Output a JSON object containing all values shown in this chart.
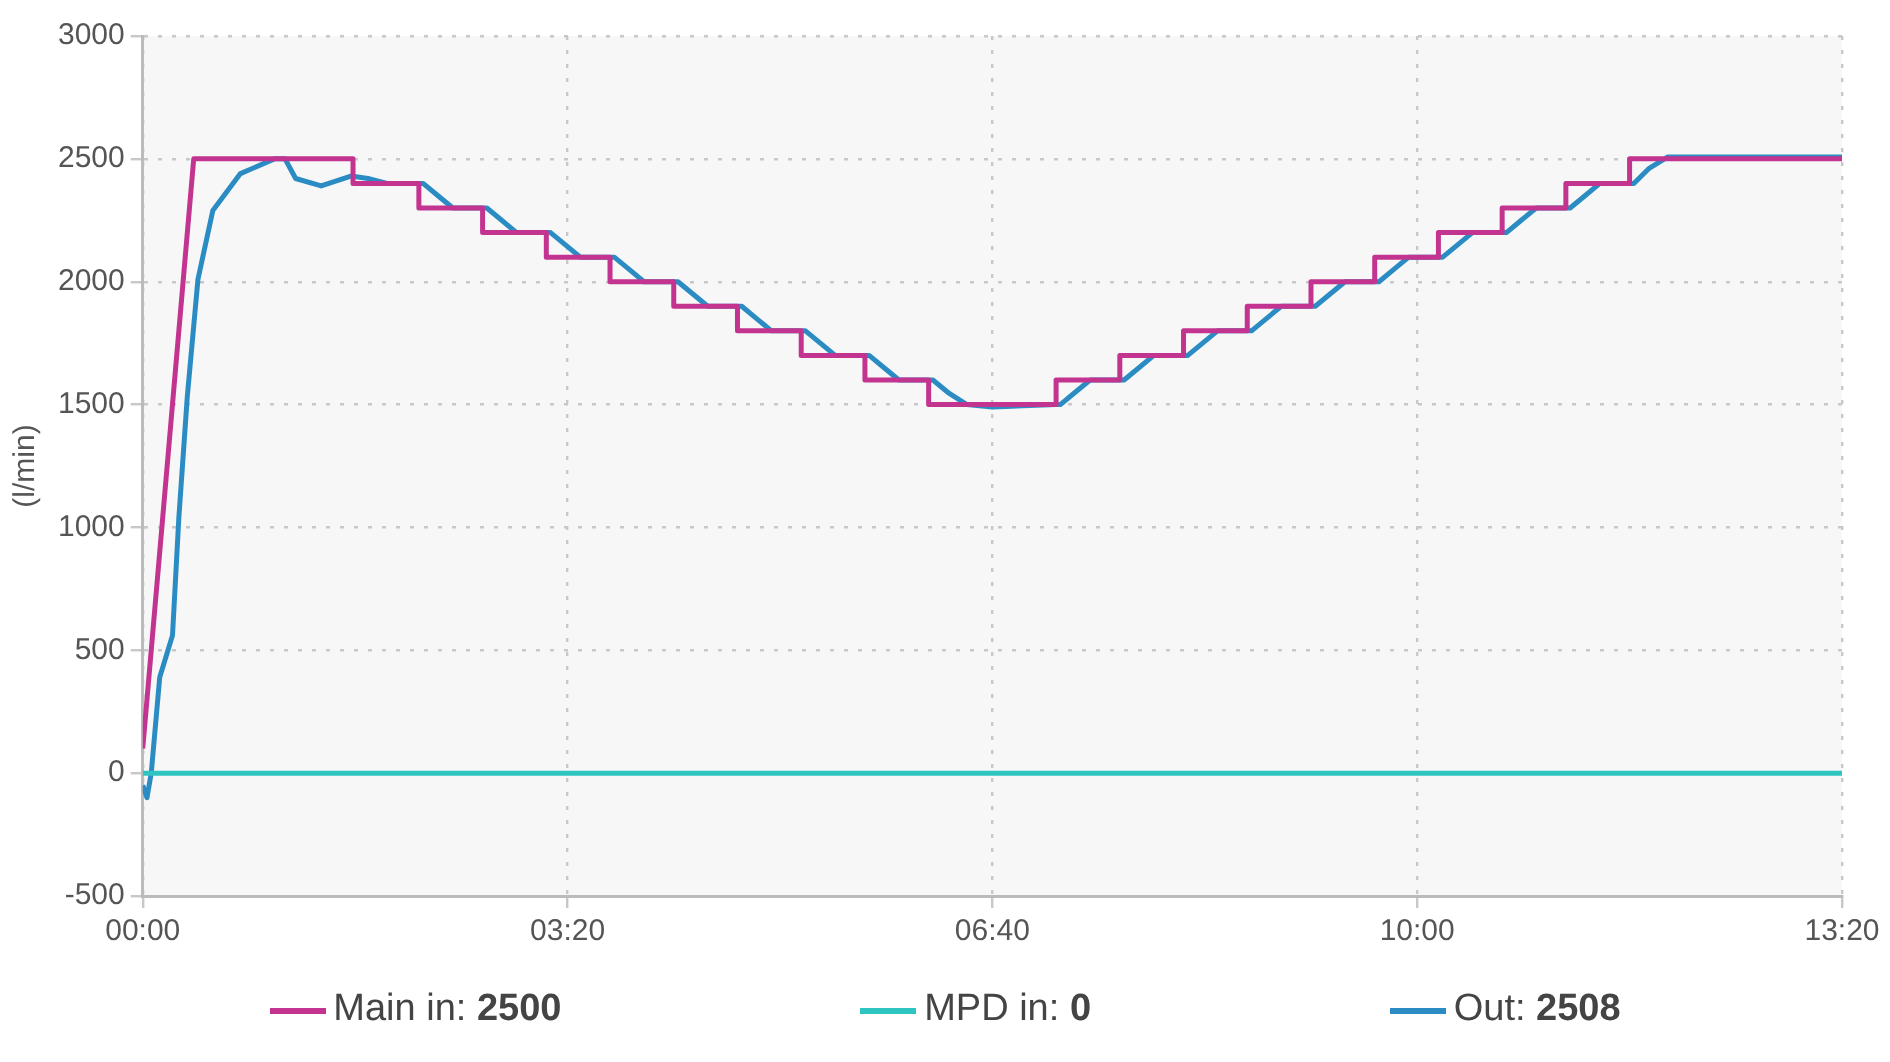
{
  "chart_data": {
    "type": "line",
    "ylabel": "(l/min)",
    "xlim": [
      0,
      800
    ],
    "xticks": [
      {
        "value": 0,
        "label": "00:00"
      },
      {
        "value": 200,
        "label": "03:20"
      },
      {
        "value": 400,
        "label": "06:40"
      },
      {
        "value": 600,
        "label": "10:00"
      },
      {
        "value": 800,
        "label": "13:20"
      }
    ],
    "ylim": [
      -500,
      3000
    ],
    "yticks": [
      -500,
      0,
      500,
      1000,
      1500,
      2000,
      2500,
      3000
    ],
    "grid": true,
    "legend": "bottom",
    "marker": "none",
    "line_style": "solid",
    "series": [
      {
        "name": "Main in: 2500",
        "color": "#c2348f",
        "x": [
          0,
          24,
          99,
          99,
          130,
          130,
          160,
          160,
          190,
          190,
          220,
          220,
          250,
          250,
          280,
          280,
          310,
          310,
          340,
          340,
          370,
          370,
          430,
          430,
          460,
          460,
          490,
          490,
          520,
          520,
          550,
          550,
          580,
          580,
          610,
          610,
          640,
          640,
          670,
          670,
          700,
          700,
          800
        ],
        "values": [
          100,
          2500,
          2500,
          2400,
          2400,
          2300,
          2300,
          2200,
          2200,
          2100,
          2100,
          2000,
          2000,
          1900,
          1900,
          1800,
          1800,
          1700,
          1700,
          1600,
          1600,
          1500,
          1500,
          1600,
          1600,
          1700,
          1700,
          1800,
          1800,
          1900,
          1900,
          2000,
          2000,
          2100,
          2100,
          2200,
          2200,
          2300,
          2300,
          2400,
          2400,
          2500,
          2500
        ]
      },
      {
        "name": "MPD in: 0",
        "color": "#2ec4c0",
        "x": [
          0,
          800
        ],
        "values": [
          0,
          0
        ]
      },
      {
        "name": "Out: 2508",
        "color": "#2b8cc4",
        "x": [
          0,
          2,
          4,
          8,
          14,
          17,
          21,
          26,
          33,
          46,
          62,
          67,
          72,
          84,
          98,
          106,
          115,
          132,
          139,
          146,
          162,
          169,
          176,
          192,
          199,
          206,
          222,
          229,
          236,
          252,
          259,
          266,
          282,
          289,
          296,
          312,
          319,
          326,
          342,
          349,
          356,
          372,
          379,
          388,
          400,
          430,
          432,
          439,
          446,
          462,
          469,
          476,
          492,
          499,
          506,
          522,
          529,
          536,
          552,
          559,
          566,
          582,
          589,
          596,
          612,
          619,
          626,
          642,
          649,
          656,
          672,
          679,
          686,
          702,
          709,
          718,
          800
        ],
        "values": [
          -50,
          -100,
          0,
          390,
          560,
          1040,
          1535,
          2010,
          2290,
          2440,
          2500,
          2500,
          2420,
          2390,
          2430,
          2420,
          2400,
          2400,
          2350,
          2300,
          2300,
          2250,
          2200,
          2200,
          2150,
          2100,
          2100,
          2050,
          2000,
          2000,
          1950,
          1900,
          1900,
          1850,
          1800,
          1800,
          1750,
          1700,
          1700,
          1650,
          1600,
          1600,
          1550,
          1500,
          1490,
          1500,
          1500,
          1550,
          1600,
          1600,
          1650,
          1700,
          1700,
          1750,
          1800,
          1800,
          1850,
          1900,
          1900,
          1950,
          2000,
          2000,
          2050,
          2100,
          2100,
          2150,
          2200,
          2200,
          2250,
          2300,
          2300,
          2350,
          2400,
          2400,
          2460,
          2508,
          2508
        ]
      }
    ]
  }
}
